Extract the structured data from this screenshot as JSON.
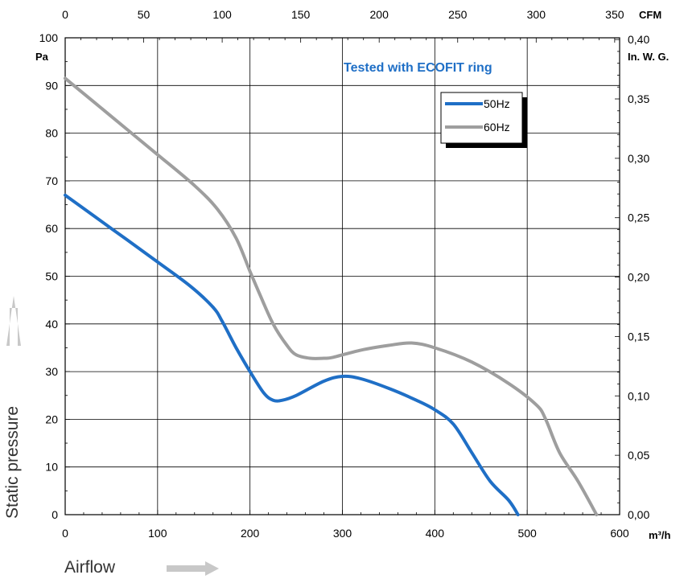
{
  "chart_data": {
    "type": "line",
    "annotation": "Tested with ECOFIT ring",
    "annotation_color": "#1f6fc6",
    "xlabel": "Airflow",
    "ylabel": "Static pressure",
    "x_unit": "m³/h",
    "x_top_unit": "CFM",
    "y_unit": "Pa",
    "y_right_unit": "In. W. G.",
    "xlim": [
      0,
      600
    ],
    "ylim": [
      0,
      100
    ],
    "x_ticks": [
      "0",
      "100",
      "200",
      "300",
      "400",
      "500",
      "600"
    ],
    "y_ticks": [
      "0",
      "10",
      "20",
      "30",
      "40",
      "50",
      "60",
      "70",
      "80",
      "90",
      "100"
    ],
    "x_top_ticks": [
      "0",
      "50",
      "100",
      "150",
      "200",
      "250",
      "300",
      "350"
    ],
    "y_right_ticks": [
      "0,00",
      "0,05",
      "0,10",
      "0,15",
      "0,20",
      "0,25",
      "0,30",
      "0,35",
      "0,40"
    ],
    "grid": true,
    "legend_position": "top-right",
    "series": [
      {
        "name": "50Hz",
        "color": "#1f6fc6",
        "x": [
          0,
          50,
          100,
          135,
          160,
          170,
          185,
          200,
          215,
          225,
          235,
          250,
          280,
          300,
          320,
          350,
          380,
          400,
          420,
          440,
          460,
          480,
          490
        ],
        "y": [
          67,
          60,
          53,
          48,
          43.5,
          40.5,
          35,
          30,
          25.5,
          24,
          24,
          25,
          28,
          29,
          28.5,
          26.5,
          24,
          22,
          19,
          13,
          7,
          3,
          0
        ]
      },
      {
        "name": "60Hz",
        "color": "#9e9e9e",
        "x": [
          0,
          50,
          100,
          140,
          165,
          185,
          200,
          210,
          225,
          240,
          250,
          265,
          280,
          290,
          320,
          350,
          375,
          400,
          440,
          480,
          510,
          520,
          535,
          555,
          575
        ],
        "y": [
          91.5,
          83.5,
          75.5,
          69,
          64,
          58,
          51,
          46.5,
          40,
          35.5,
          33.5,
          32.8,
          32.8,
          33,
          34.5,
          35.5,
          36,
          35,
          32,
          27.5,
          23,
          20,
          13,
          7,
          0
        ]
      }
    ]
  }
}
